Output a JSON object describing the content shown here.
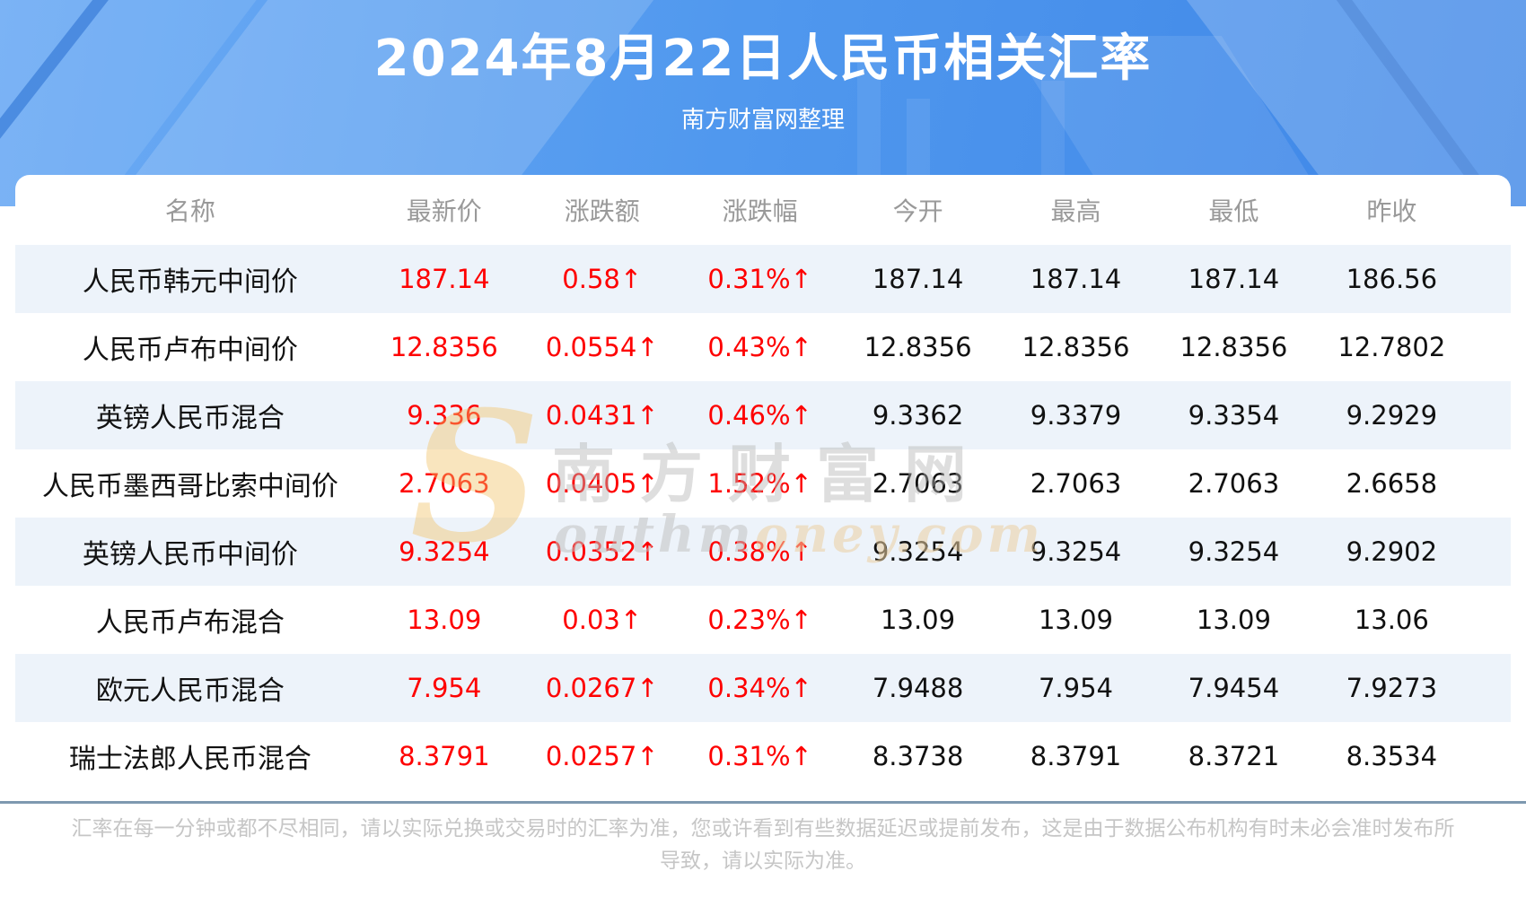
{
  "header": {
    "title": "2024年8月22日人民币相关汇率",
    "subtitle": "南方财富网整理"
  },
  "watermark": {
    "initial": "S",
    "cn": "南方财富网",
    "en_gray": "outhm",
    "en_tan": "oney.com"
  },
  "chart_data": {
    "type": "table",
    "title": "2024年8月22日人民币相关汇率",
    "columns": [
      "名称",
      "最新价",
      "涨跌额",
      "涨跌幅",
      "今开",
      "最高",
      "最低",
      "昨收"
    ],
    "rows": [
      [
        "人民币韩元中间价",
        "187.14",
        "0.58↑",
        "0.31%↑",
        "187.14",
        "187.14",
        "187.14",
        "186.56"
      ],
      [
        "人民币卢布中间价",
        "12.8356",
        "0.0554↑",
        "0.43%↑",
        "12.8356",
        "12.8356",
        "12.8356",
        "12.7802"
      ],
      [
        "英镑人民币混合",
        "9.336",
        "0.0431↑",
        "0.46%↑",
        "9.3362",
        "9.3379",
        "9.3354",
        "9.2929"
      ],
      [
        "人民币墨西哥比索中间价",
        "2.7063",
        "0.0405↑",
        "1.52%↑",
        "2.7063",
        "2.7063",
        "2.7063",
        "2.6658"
      ],
      [
        "英镑人民币中间价",
        "9.3254",
        "0.0352↑",
        "0.38%↑",
        "9.3254",
        "9.3254",
        "9.3254",
        "9.2902"
      ],
      [
        "人民币卢布混合",
        "13.09",
        "0.03↑",
        "0.23%↑",
        "13.09",
        "13.09",
        "13.09",
        "13.06"
      ],
      [
        "欧元人民币混合",
        "7.954",
        "0.0267↑",
        "0.34%↑",
        "7.9488",
        "7.954",
        "7.9454",
        "7.9273"
      ],
      [
        "瑞士法郎人民币混合",
        "8.3791",
        "0.0257↑",
        "0.31%↑",
        "8.3738",
        "8.3791",
        "8.3721",
        "8.3534"
      ]
    ],
    "red_columns": [
      1,
      2,
      3
    ],
    "colors": {
      "up_text": "#fe0000",
      "value_text": "#111111",
      "header_text": "#999999",
      "alt_row_bg": "#edf3fa",
      "hero_blue": "#4f95ee",
      "divider": "#7e99b0"
    },
    "legend_position": "none",
    "grid": false
  },
  "footer": {
    "disclaimer": "汇率在每一分钟或都不尽相同，请以实际兑换或交易时的汇率为准，您或许看到有些数据延迟或提前发布，这是由于数据公布机构有时未必会准时发布所导致，请以实际为准。"
  }
}
